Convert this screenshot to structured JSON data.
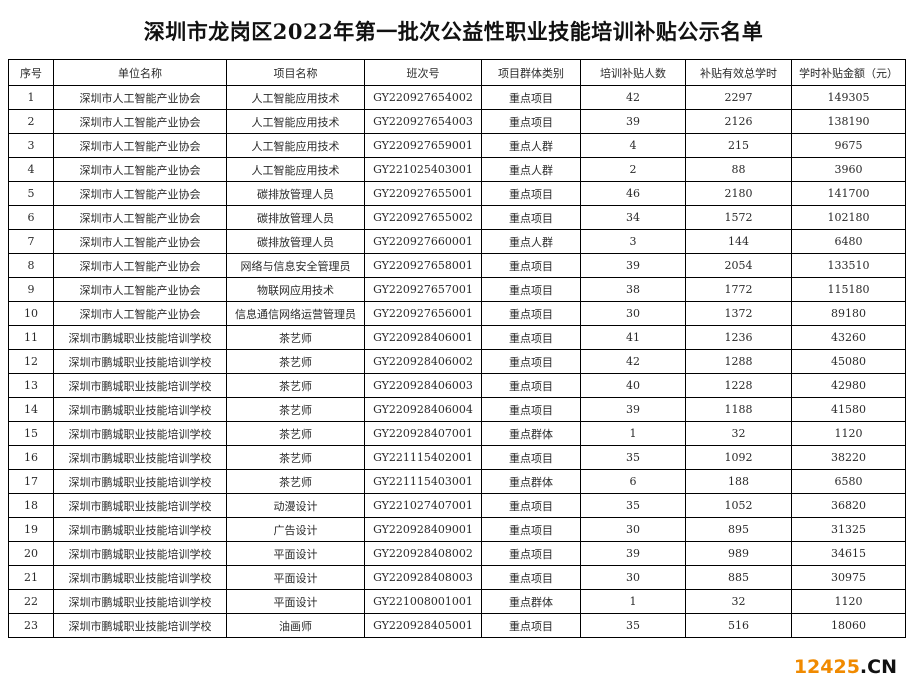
{
  "title": "深圳市龙岗区2022年第一批次公益性职业技能培训补贴公示名单",
  "headers": [
    "序号",
    "单位名称",
    "项目名称",
    "班次号",
    "项目群体类别",
    "培训补贴人数",
    "补贴有效总学时",
    "学时补贴金额（元）"
  ],
  "rows": [
    [
      "1",
      "深圳市人工智能产业协会",
      "人工智能应用技术",
      "GY220927654002",
      "重点项目",
      "42",
      "2297",
      "149305"
    ],
    [
      "2",
      "深圳市人工智能产业协会",
      "人工智能应用技术",
      "GY220927654003",
      "重点项目",
      "39",
      "2126",
      "138190"
    ],
    [
      "3",
      "深圳市人工智能产业协会",
      "人工智能应用技术",
      "GY220927659001",
      "重点人群",
      "4",
      "215",
      "9675"
    ],
    [
      "4",
      "深圳市人工智能产业协会",
      "人工智能应用技术",
      "GY221025403001",
      "重点人群",
      "2",
      "88",
      "3960"
    ],
    [
      "5",
      "深圳市人工智能产业协会",
      "碳排放管理人员",
      "GY220927655001",
      "重点项目",
      "46",
      "2180",
      "141700"
    ],
    [
      "6",
      "深圳市人工智能产业协会",
      "碳排放管理人员",
      "GY220927655002",
      "重点项目",
      "34",
      "1572",
      "102180"
    ],
    [
      "7",
      "深圳市人工智能产业协会",
      "碳排放管理人员",
      "GY220927660001",
      "重点人群",
      "3",
      "144",
      "6480"
    ],
    [
      "8",
      "深圳市人工智能产业协会",
      "网络与信息安全管理员",
      "GY220927658001",
      "重点项目",
      "39",
      "2054",
      "133510"
    ],
    [
      "9",
      "深圳市人工智能产业协会",
      "物联网应用技术",
      "GY220927657001",
      "重点项目",
      "38",
      "1772",
      "115180"
    ],
    [
      "10",
      "深圳市人工智能产业协会",
      "信息通信网络运营管理员",
      "GY220927656001",
      "重点项目",
      "30",
      "1372",
      "89180"
    ],
    [
      "11",
      "深圳市鹏城职业技能培训学校",
      "茶艺师",
      "GY220928406001",
      "重点项目",
      "41",
      "1236",
      "43260"
    ],
    [
      "12",
      "深圳市鹏城职业技能培训学校",
      "茶艺师",
      "GY220928406002",
      "重点项目",
      "42",
      "1288",
      "45080"
    ],
    [
      "13",
      "深圳市鹏城职业技能培训学校",
      "茶艺师",
      "GY220928406003",
      "重点项目",
      "40",
      "1228",
      "42980"
    ],
    [
      "14",
      "深圳市鹏城职业技能培训学校",
      "茶艺师",
      "GY220928406004",
      "重点项目",
      "39",
      "1188",
      "41580"
    ],
    [
      "15",
      "深圳市鹏城职业技能培训学校",
      "茶艺师",
      "GY220928407001",
      "重点群体",
      "1",
      "32",
      "1120"
    ],
    [
      "16",
      "深圳市鹏城职业技能培训学校",
      "茶艺师",
      "GY221115402001",
      "重点项目",
      "35",
      "1092",
      "38220"
    ],
    [
      "17",
      "深圳市鹏城职业技能培训学校",
      "茶艺师",
      "GY221115403001",
      "重点群体",
      "6",
      "188",
      "6580"
    ],
    [
      "18",
      "深圳市鹏城职业技能培训学校",
      "动漫设计",
      "GY221027407001",
      "重点项目",
      "35",
      "1052",
      "36820"
    ],
    [
      "19",
      "深圳市鹏城职业技能培训学校",
      "广告设计",
      "GY220928409001",
      "重点项目",
      "30",
      "895",
      "31325"
    ],
    [
      "20",
      "深圳市鹏城职业技能培训学校",
      "平面设计",
      "GY220928408002",
      "重点项目",
      "39",
      "989",
      "34615"
    ],
    [
      "21",
      "深圳市鹏城职业技能培训学校",
      "平面设计",
      "GY220928408003",
      "重点项目",
      "30",
      "885",
      "30975"
    ],
    [
      "22",
      "深圳市鹏城职业技能培训学校",
      "平面设计",
      "GY221008001001",
      "重点群体",
      "1",
      "32",
      "1120"
    ],
    [
      "23",
      "深圳市鹏城职业技能培训学校",
      "油画师",
      "GY220928405001",
      "重点项目",
      "35",
      "516",
      "18060"
    ]
  ],
  "watermark": {
    "number": "12425",
    "suffix": ".CN",
    "accent_color": "#f08a00"
  }
}
